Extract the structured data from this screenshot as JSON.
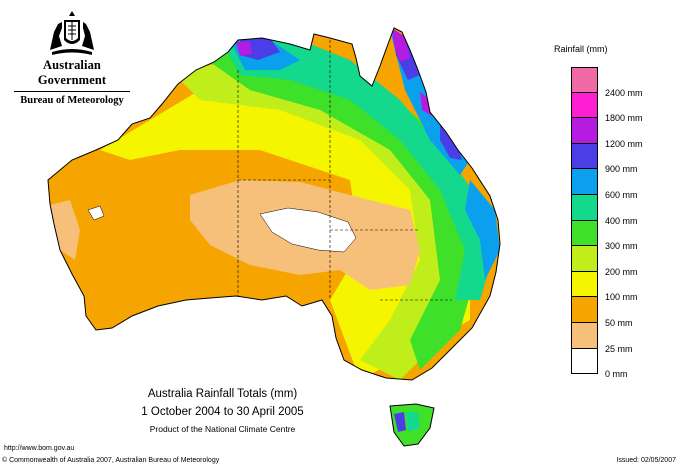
{
  "logo": {
    "government": "Australian Government",
    "bureau": "Bureau of Meteorology"
  },
  "legend": {
    "title": "Rainfall (mm)",
    "items": [
      {
        "label": "",
        "color": "#f06aa8"
      },
      {
        "label": "2400 mm",
        "color": "#ff1fd2"
      },
      {
        "label": "1800 mm",
        "color": "#b51be0"
      },
      {
        "label": "1200 mm",
        "color": "#4b3ee6"
      },
      {
        "label": "900 mm",
        "color": "#0aa0ee"
      },
      {
        "label": "600 mm",
        "color": "#14d88c"
      },
      {
        "label": "400 mm",
        "color": "#3fe02a"
      },
      {
        "label": "300 mm",
        "color": "#c0ee1a"
      },
      {
        "label": "200 mm",
        "color": "#f5f500"
      },
      {
        "label": "100 mm",
        "color": "#f5a400"
      },
      {
        "label": "50 mm",
        "color": "#f6c07a"
      },
      {
        "label": "25 mm",
        "color": "#ffffff"
      },
      {
        "label": "0 mm",
        "color": ""
      }
    ]
  },
  "caption": {
    "title": "Australia Rainfall Totals (mm)",
    "period": "1 October 2004 to 30 April 2005",
    "product": "Product of the National Climate Centre"
  },
  "footer": {
    "url": "http://www.bom.gov.au",
    "copyright": "© Commonwealth of Australia 2007, Australian Bureau of Meteorology",
    "issued": "Issued: 02/05/2007"
  },
  "map_colors": {
    "outline": "#000000",
    "white": "#ffffff",
    "light_orange": "#f6c07a",
    "orange": "#f5a400",
    "yellow": "#f5f500",
    "lime": "#c0ee1a",
    "green": "#3fe02a",
    "teal": "#14d88c",
    "sky": "#0aa0ee",
    "blue": "#4b3ee6",
    "purple": "#b51be0"
  }
}
